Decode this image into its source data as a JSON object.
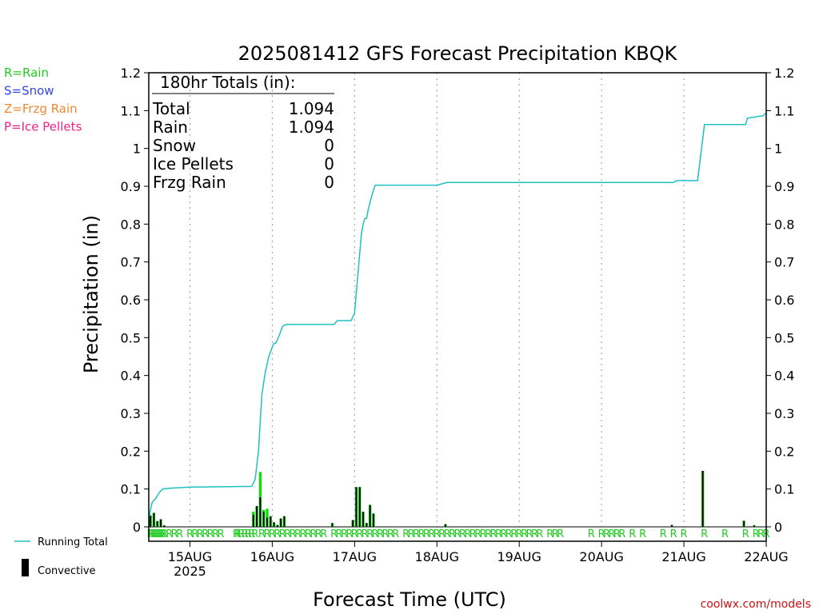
{
  "chart_data": {
    "type": "bar",
    "title": "2025081412 GFS Forecast Precipitation KBQK",
    "ylabel": "Precipitation (in)",
    "xlabel": "Forecast Time (UTC)",
    "ylim": [
      0,
      1.2
    ],
    "y_ticks": [
      "0",
      "0.1",
      "0.2",
      "0.3",
      "0.4",
      "0.5",
      "0.6",
      "0.7",
      "0.8",
      "0.9",
      "1",
      "1.1",
      "1.2"
    ],
    "x_ticks": [
      {
        "hour": 12,
        "label": "15AUG",
        "sublabel": "2025"
      },
      {
        "hour": 36,
        "label": "16AUG"
      },
      {
        "hour": 60,
        "label": "17AUG"
      },
      {
        "hour": 84,
        "label": "18AUG"
      },
      {
        "hour": 108,
        "label": "19AUG"
      },
      {
        "hour": 132,
        "label": "20AUG"
      },
      {
        "hour": 156,
        "label": "21AUG"
      },
      {
        "hour": 180,
        "label": "22AUG"
      }
    ],
    "grid": "vertical dotted lines at day boundaries",
    "type_legend": [
      {
        "text": "R=Rain",
        "color": "#22cc22"
      },
      {
        "text": "S=Snow",
        "color": "#3344ee"
      },
      {
        "text": "Z=Frzg Rain",
        "color": "#ee8833"
      },
      {
        "text": "P=Ice Pellets",
        "color": "#ee2288"
      }
    ],
    "series_legend": [
      {
        "text": "Running Total",
        "color": "#20c0c0",
        "kind": "line"
      },
      {
        "text": "Convective",
        "color": "#000000",
        "kind": "bar"
      }
    ],
    "totals_box": {
      "header": "180hr Totals (in):",
      "rows": [
        {
          "label": "Total",
          "value": "1.094"
        },
        {
          "label": "Rain",
          "value": "1.094"
        },
        {
          "label": "Snow",
          "value": "0"
        },
        {
          "label": "Ice Pellets",
          "value": "0"
        },
        {
          "label": "Frzg Rain",
          "value": "0"
        }
      ]
    },
    "precip_type_letter": "R",
    "precip_type_hours": [
      0.5,
      1,
      1.5,
      2,
      2.5,
      3,
      3.5,
      4,
      4.5,
      6,
      7.5,
      9,
      12,
      13.5,
      15,
      16.5,
      18,
      19.5,
      21,
      25.5,
      26,
      27,
      28,
      29,
      30,
      31,
      33,
      34.5,
      36,
      37.5,
      39,
      40.5,
      42,
      43.5,
      45,
      46.5,
      48,
      49.5,
      51,
      54,
      55.5,
      57,
      58.5,
      60,
      61.5,
      63,
      64.5,
      66,
      67.5,
      69,
      70.5,
      72,
      75,
      76.5,
      78,
      79.5,
      81,
      82.5,
      84,
      85.5,
      87,
      88.5,
      90,
      91.5,
      93,
      94.5,
      96,
      97.5,
      99,
      100.5,
      102,
      103.5,
      105,
      106.5,
      108,
      109.5,
      111,
      112.5,
      114,
      117,
      118.5,
      120,
      129,
      132,
      133.5,
      135,
      136.5,
      138,
      141,
      144,
      150,
      153,
      156,
      162,
      168,
      174,
      177,
      178.5,
      180
    ],
    "bars": [
      {
        "hour": 1,
        "total": 0.03,
        "conv": 0.03
      },
      {
        "hour": 2,
        "total": 0.037,
        "conv": 0.037
      },
      {
        "hour": 3,
        "total": 0.015,
        "conv": 0.015
      },
      {
        "hour": 4,
        "total": 0.02,
        "conv": 0.02
      },
      {
        "hour": 5,
        "total": 0.004,
        "conv": 0.004
      },
      {
        "hour": 31,
        "total": 0.04,
        "conv": 0.032
      },
      {
        "hour": 32,
        "total": 0.055,
        "conv": 0.055
      },
      {
        "hour": 33,
        "total": 0.145,
        "conv": 0.078
      },
      {
        "hour": 34,
        "total": 0.045,
        "conv": 0.04
      },
      {
        "hour": 35,
        "total": 0.048,
        "conv": 0.025
      },
      {
        "hour": 36,
        "total": 0.028,
        "conv": 0.028
      },
      {
        "hour": 37,
        "total": 0.012,
        "conv": 0.012
      },
      {
        "hour": 38,
        "total": 0.005,
        "conv": 0.005
      },
      {
        "hour": 39,
        "total": 0.022,
        "conv": 0.022
      },
      {
        "hour": 40,
        "total": 0.028,
        "conv": 0.028
      },
      {
        "hour": 54,
        "total": 0.01,
        "conv": 0.01
      },
      {
        "hour": 60,
        "total": 0.018,
        "conv": 0.018
      },
      {
        "hour": 61,
        "total": 0.105,
        "conv": 0.105
      },
      {
        "hour": 62,
        "total": 0.105,
        "conv": 0.105
      },
      {
        "hour": 63,
        "total": 0.04,
        "conv": 0.04
      },
      {
        "hour": 64,
        "total": 0.01,
        "conv": 0.01
      },
      {
        "hour": 65,
        "total": 0.058,
        "conv": 0.058
      },
      {
        "hour": 66,
        "total": 0.035,
        "conv": 0.035
      },
      {
        "hour": 87,
        "total": 0.007,
        "conv": 0.007
      },
      {
        "hour": 153,
        "total": 0.005,
        "conv": 0.005
      },
      {
        "hour": 162,
        "total": 0.148,
        "conv": 0.148
      },
      {
        "hour": 174,
        "total": 0.016,
        "conv": 0.016
      },
      {
        "hour": 177,
        "total": 0.004,
        "conv": 0.004
      }
    ],
    "running_total": [
      [
        0,
        0.02
      ],
      [
        0.5,
        0.045
      ],
      [
        1,
        0.065
      ],
      [
        2,
        0.075
      ],
      [
        3,
        0.09
      ],
      [
        4,
        0.1
      ],
      [
        6,
        0.102
      ],
      [
        12,
        0.105
      ],
      [
        30,
        0.107
      ],
      [
        31,
        0.125
      ],
      [
        32,
        0.2
      ],
      [
        32.5,
        0.28
      ],
      [
        33,
        0.35
      ],
      [
        34,
        0.41
      ],
      [
        35,
        0.45
      ],
      [
        36,
        0.475
      ],
      [
        36.5,
        0.485
      ],
      [
        37,
        0.485
      ],
      [
        38,
        0.505
      ],
      [
        39,
        0.53
      ],
      [
        40,
        0.535
      ],
      [
        54,
        0.535
      ],
      [
        55,
        0.545
      ],
      [
        59,
        0.545
      ],
      [
        60,
        0.565
      ],
      [
        61,
        0.67
      ],
      [
        62,
        0.775
      ],
      [
        62.5,
        0.8
      ],
      [
        63,
        0.815
      ],
      [
        63.5,
        0.815
      ],
      [
        64,
        0.84
      ],
      [
        65,
        0.875
      ],
      [
        66,
        0.903
      ],
      [
        84,
        0.903
      ],
      [
        87,
        0.91
      ],
      [
        153,
        0.91
      ],
      [
        154,
        0.915
      ],
      [
        160,
        0.915
      ],
      [
        162,
        1.063
      ],
      [
        174,
        1.063
      ],
      [
        174.5,
        1.08
      ],
      [
        176,
        1.082
      ],
      [
        178,
        1.085
      ],
      [
        179,
        1.086
      ],
      [
        180,
        1.094
      ]
    ]
  },
  "watermark": "coolwx.com/models",
  "colors": {
    "rain_bar": "#11dd11",
    "convective": "#000000",
    "running_total": "#20c0c0",
    "letters": "#22cc22",
    "watermark": "#cc1111"
  }
}
